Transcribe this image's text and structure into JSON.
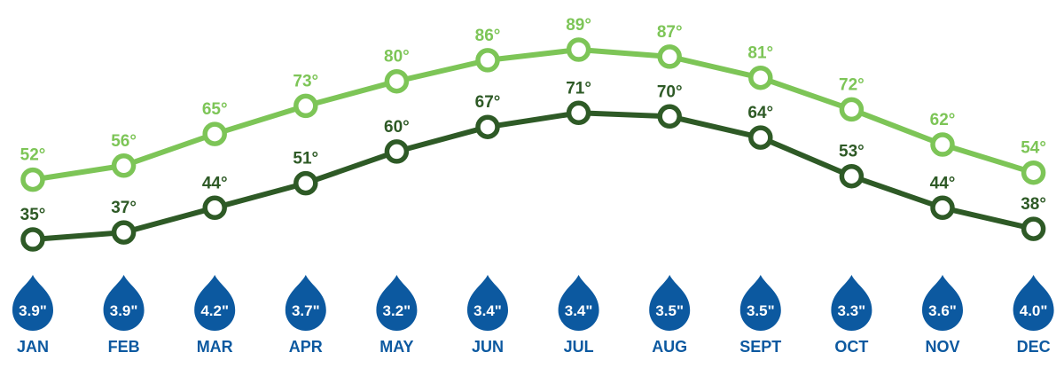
{
  "chart_data": {
    "type": "line",
    "categories": [
      "JAN",
      "FEB",
      "MAR",
      "APR",
      "MAY",
      "JUN",
      "JUL",
      "AUG",
      "SEPT",
      "OCT",
      "NOV",
      "DEC"
    ],
    "series": [
      {
        "key": "high",
        "values": [
          52,
          56,
          65,
          73,
          80,
          86,
          89,
          87,
          81,
          72,
          62,
          54
        ],
        "labels": [
          "52°",
          "56°",
          "65°",
          "73°",
          "80°",
          "86°",
          "89°",
          "87°",
          "81°",
          "72°",
          "62°",
          "54°"
        ],
        "color": "#7dc557"
      },
      {
        "key": "low",
        "values": [
          35,
          37,
          44,
          51,
          60,
          67,
          71,
          70,
          64,
          53,
          44,
          38
        ],
        "labels": [
          "35°",
          "37°",
          "44°",
          "51°",
          "60°",
          "67°",
          "71°",
          "70°",
          "64°",
          "53°",
          "44°",
          "38°"
        ],
        "color": "#2e5a26"
      }
    ],
    "precipitation": {
      "values": [
        3.9,
        3.9,
        4.2,
        3.7,
        3.2,
        3.4,
        3.4,
        3.5,
        3.5,
        3.3,
        3.6,
        4.0
      ],
      "labels": [
        "3.9\"",
        "3.9\"",
        "4.2\"",
        "3.7\"",
        "3.2\"",
        "3.4\"",
        "3.4\"",
        "3.5\"",
        "3.5\"",
        "3.3\"",
        "3.6\"",
        "4.0\""
      ],
      "icon": "raindrop-icon",
      "color": "#0c59a0"
    },
    "month_label_color": "#0c59a0",
    "ylim": [
      35,
      89
    ],
    "grid": false,
    "legend": "none"
  }
}
